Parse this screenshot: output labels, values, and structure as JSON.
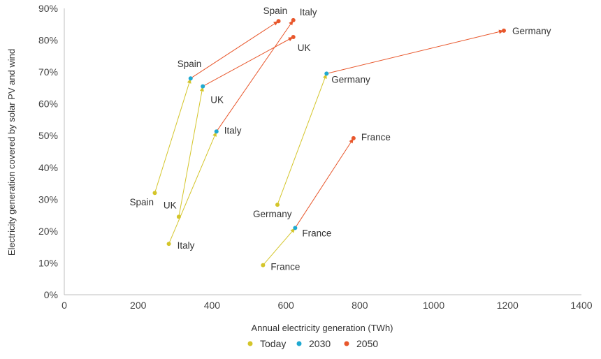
{
  "chart_data": {
    "type": "scatter",
    "xlabel": "Annual electricity generation (TWh)",
    "ylabel": "Electricity generation covered by solar PV and wind",
    "xlim": [
      0,
      1400
    ],
    "ylim": [
      0,
      90
    ],
    "xticks": [
      "0",
      "200",
      "400",
      "600",
      "800",
      "1000",
      "1200",
      "1400"
    ],
    "yticks": [
      "0%",
      "10%",
      "20%",
      "30%",
      "40%",
      "50%",
      "60%",
      "70%",
      "80%",
      "90%"
    ],
    "grid": false,
    "legend_position": "bottom",
    "series": [
      {
        "name": "Today",
        "color": "#d4c52a"
      },
      {
        "name": "2030",
        "color": "#1fa9d1"
      },
      {
        "name": "2050",
        "color": "#e8572c"
      }
    ],
    "countries": [
      {
        "name": "Spain",
        "today": [
          245,
          32
        ],
        "y2030": [
          342,
          68
        ],
        "y2050": [
          580,
          86
        ]
      },
      {
        "name": "UK",
        "today": [
          310,
          24.5
        ],
        "y2030": [
          375,
          65.5
        ],
        "y2050": [
          620,
          81
        ]
      },
      {
        "name": "Italy",
        "today": [
          283,
          16
        ],
        "y2030": [
          412,
          51.3
        ],
        "y2050": [
          620,
          86.3
        ]
      },
      {
        "name": "Germany",
        "today": [
          577,
          28.3
        ],
        "y2030": [
          710,
          69.5
        ],
        "y2050": [
          1190,
          83
        ]
      },
      {
        "name": "France",
        "today": [
          538,
          9.3
        ],
        "y2030": [
          625,
          21
        ],
        "y2050": [
          783,
          49.2
        ]
      }
    ],
    "labels": [
      {
        "text": "Spain",
        "series": "Today"
      },
      {
        "text": "UK",
        "series": "Today"
      },
      {
        "text": "Italy",
        "series": "Today"
      },
      {
        "text": "Germany",
        "series": "Today"
      },
      {
        "text": "France",
        "series": "Today"
      },
      {
        "text": "Spain",
        "series": "2030"
      },
      {
        "text": "UK",
        "series": "2030"
      },
      {
        "text": "Italy",
        "series": "2030"
      },
      {
        "text": "Germany",
        "series": "2030"
      },
      {
        "text": "France",
        "series": "2030"
      },
      {
        "text": "Spain",
        "series": "2050"
      },
      {
        "text": "Italy",
        "series": "2050"
      },
      {
        "text": "UK",
        "series": "2050"
      },
      {
        "text": "Germany",
        "series": "2050"
      },
      {
        "text": "France",
        "series": "2050"
      }
    ]
  }
}
